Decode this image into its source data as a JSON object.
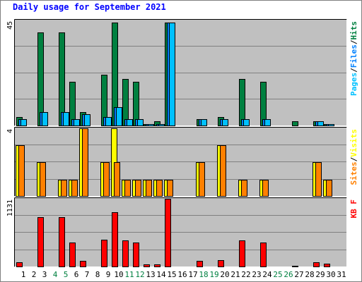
{
  "chart_data": {
    "type": "bar",
    "title": "Daily usage for September 2021",
    "days": [
      "1",
      "2",
      "3",
      "4",
      "5",
      "6",
      "7",
      "8",
      "9",
      "10",
      "11",
      "12",
      "13",
      "14",
      "15",
      "16",
      "17",
      "18",
      "19",
      "20",
      "21",
      "22",
      "23",
      "24",
      "25",
      "26",
      "27",
      "28",
      "29",
      "30",
      "31"
    ],
    "weekend_days": [
      "4",
      "5",
      "11",
      "12",
      "18",
      "19",
      "25",
      "26"
    ],
    "panels": [
      {
        "id": "hits-files-pages",
        "ymax_label": "45",
        "ymax": 45,
        "legend": [
          "Pages",
          "/",
          "Files",
          "/",
          "Hits"
        ],
        "legend_colors": [
          "#00c0ff",
          "#000000",
          "#0080ff",
          "#000000",
          "#008040"
        ],
        "series": [
          {
            "name": "Hits",
            "color": "#008040",
            "values": [
              4,
              0,
              40,
              0,
              40,
              19,
              6,
              0,
              22,
              44,
              20,
              19,
              1,
              2,
              44,
              0,
              0,
              3,
              0,
              4,
              0,
              20,
              0,
              19,
              0,
              0,
              2,
              0,
              2,
              1,
              0
            ]
          },
          {
            "name": "Files",
            "color": "#0080ff",
            "values": [
              3,
              0,
              6,
              0,
              6,
              3,
              5,
              0,
              4,
              8,
              3,
              3,
              1,
              1,
              44,
              0,
              0,
              3,
              0,
              3,
              0,
              3,
              0,
              3,
              0,
              0,
              0,
              0,
              2,
              1,
              0
            ]
          },
          {
            "name": "Pages",
            "color": "#00c0ff",
            "values": [
              3,
              0,
              6,
              0,
              6,
              3,
              5,
              0,
              4,
              8,
              3,
              3,
              1,
              1,
              44,
              0,
              0,
              3,
              0,
              3,
              0,
              3,
              0,
              3,
              0,
              0,
              0,
              0,
              2,
              1,
              0
            ]
          }
        ]
      },
      {
        "id": "visits-sites",
        "ymax_label": "4",
        "ymax": 4,
        "legend": [
          "Sites",
          "/",
          "Visits"
        ],
        "legend_colors": [
          "#ff8000",
          "#000000",
          "#ffff00"
        ],
        "series": [
          {
            "name": "Visits",
            "color": "#ffff00",
            "values": [
              3,
              0,
              2,
              0,
              1,
              1,
              4,
              0,
              2,
              4,
              1,
              1,
              1,
              1,
              1,
              0,
              0,
              2,
              0,
              3,
              0,
              1,
              0,
              1,
              0,
              0,
              0,
              0,
              2,
              1,
              0
            ]
          },
          {
            "name": "Sites",
            "color": "#ff8000",
            "values": [
              3,
              0,
              2,
              0,
              1,
              1,
              4,
              0,
              2,
              2,
              1,
              1,
              1,
              1,
              1,
              0,
              0,
              2,
              0,
              3,
              0,
              1,
              0,
              1,
              0,
              0,
              0,
              0,
              2,
              1,
              0
            ]
          }
        ]
      },
      {
        "id": "kbytes",
        "ymax_label": "1131",
        "ymax": 1131,
        "legend": [
          "KB F"
        ],
        "legend_colors": [
          "#ff0000"
        ],
        "series": [
          {
            "name": "KB F",
            "color": "#ff0000",
            "values": [
              80,
              0,
              830,
              0,
              830,
              410,
              100,
              0,
              450,
              910,
              440,
              410,
              50,
              50,
              1131,
              0,
              0,
              110,
              0,
              120,
              0,
              440,
              0,
              410,
              0,
              0,
              20,
              0,
              80,
              60,
              0
            ]
          }
        ]
      }
    ],
    "grid": true,
    "colors": {
      "background": "#ffffff",
      "frame_light": "#ffffff",
      "frame_dark": "#808080",
      "plot_bg": "#c0c0c0",
      "grid": "#808080",
      "title": "#0000ff",
      "day_label": "#000000",
      "weekend_label": "#008040",
      "outline": "#000000"
    }
  }
}
